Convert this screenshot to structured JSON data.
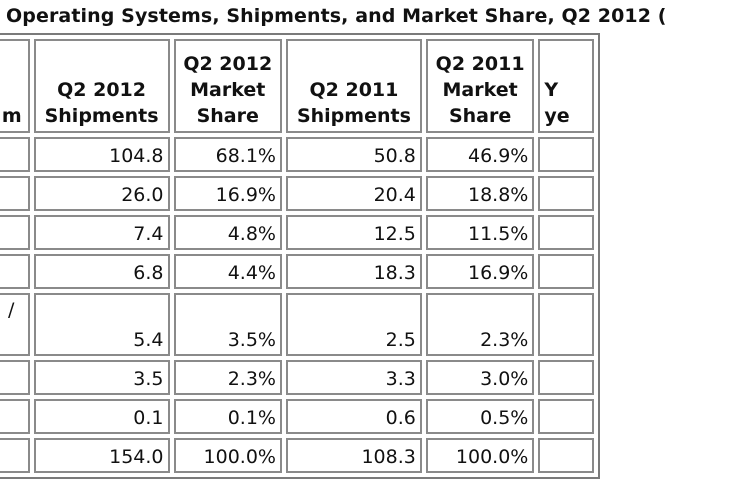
{
  "title": "Operating Systems, Shipments, and Market Share, Q2 2012 (",
  "chart_data": {
    "type": "table",
    "columns": [
      [
        "",
        "",
        "m"
      ],
      [
        "",
        "Q2 2012",
        "Shipments"
      ],
      [
        "Q2 2012",
        "Market",
        "Share"
      ],
      [
        "",
        "Q2 2011",
        "Shipments"
      ],
      [
        "Q2 2011",
        "Market",
        "Share"
      ],
      [
        "",
        "Y",
        "ye"
      ]
    ],
    "rows": [
      {
        "label": "",
        "q2_2012_shipments": "104.8",
        "q2_2012_share": "68.1%",
        "q2_2011_shipments": "50.8",
        "q2_2011_share": "46.9%",
        "yoy": ""
      },
      {
        "label": "",
        "q2_2012_shipments": "26.0",
        "q2_2012_share": "16.9%",
        "q2_2011_shipments": "20.4",
        "q2_2011_share": "18.8%",
        "yoy": ""
      },
      {
        "label": "",
        "q2_2012_shipments": "7.4",
        "q2_2012_share": "4.8%",
        "q2_2011_shipments": "12.5",
        "q2_2011_share": "11.5%",
        "yoy": ""
      },
      {
        "label": "",
        "q2_2012_shipments": "6.8",
        "q2_2012_share": "4.4%",
        "q2_2011_shipments": "18.3",
        "q2_2011_share": "16.9%",
        "yoy": ""
      },
      {
        "label": "/",
        "q2_2012_shipments": "5.4",
        "q2_2012_share": "3.5%",
        "q2_2011_shipments": "2.5",
        "q2_2011_share": "2.3%",
        "yoy": "",
        "tall": true
      },
      {
        "label": "",
        "q2_2012_shipments": "3.5",
        "q2_2012_share": "2.3%",
        "q2_2011_shipments": "3.3",
        "q2_2011_share": "3.0%",
        "yoy": ""
      },
      {
        "label": "",
        "q2_2012_shipments": "0.1",
        "q2_2012_share": "0.1%",
        "q2_2011_shipments": "0.6",
        "q2_2011_share": "0.5%",
        "yoy": ""
      },
      {
        "label": "",
        "q2_2012_shipments": "154.0",
        "q2_2012_share": "100.0%",
        "q2_2011_shipments": "108.3",
        "q2_2011_share": "100.0%",
        "yoy": ""
      }
    ]
  }
}
